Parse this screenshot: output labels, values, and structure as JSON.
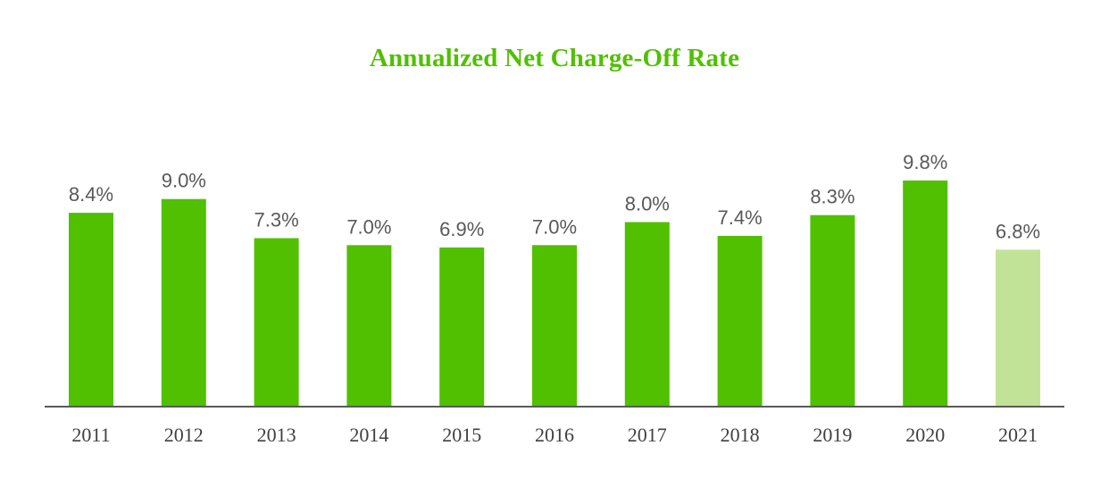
{
  "chart_data": {
    "type": "bar",
    "title": "Annualized Net Charge-Off Rate",
    "xlabel": "",
    "ylabel": "",
    "categories": [
      "2011",
      "2012",
      "2013",
      "2014",
      "2015",
      "2016",
      "2017",
      "2018",
      "2019",
      "2020",
      "2021"
    ],
    "values": [
      8.4,
      9.0,
      7.3,
      7.0,
      6.9,
      7.0,
      8.0,
      7.4,
      8.3,
      9.8,
      6.8
    ],
    "data_labels": [
      "8.4%",
      "9.0%",
      "7.3%",
      "7.0%",
      "6.9%",
      "7.0%",
      "8.0%",
      "7.4%",
      "8.3%",
      "9.8%",
      "6.8%"
    ],
    "highlight_index": 10,
    "ylim": [
      0,
      9.8
    ],
    "grid": false,
    "legend": "none",
    "colors": {
      "bar": "#50c000",
      "bar_highlight": "#c1e398",
      "title": "#50c000",
      "axis": "#595959"
    }
  }
}
